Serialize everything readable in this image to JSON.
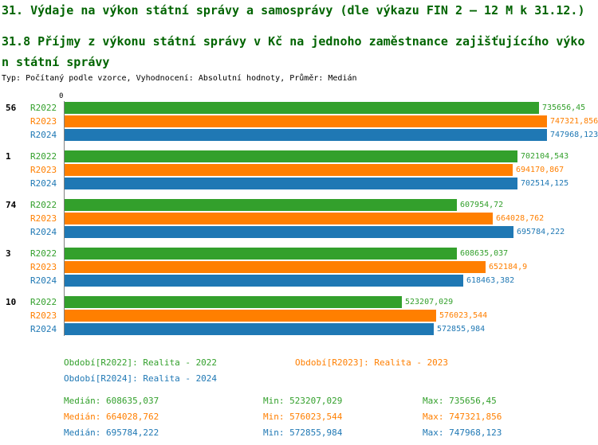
{
  "titles": {
    "line1": "31. Výdaje na výkon státní správy a samosprávy (dle výkazu FIN 2 – 12 M k 31.12.)",
    "line2": "31.8 Příjmy z výkonu státní správy v Kč na jednoho zaměstnance zajišťujícího výkon státní správy",
    "subtitle": "Typ: Počítaný podle vzorce, Vyhodnocení: Absolutní hodnoty, Průměr: Medián"
  },
  "colors": {
    "title": "#006400",
    "r2022": "#33a02c",
    "r2023": "#ff7f00",
    "r2024": "#1f78b4"
  },
  "axis": {
    "zero_label": "0"
  },
  "chart_data": {
    "type": "bar",
    "orientation": "horizontal",
    "title": "31.8 Příjmy z výkonu státní správy v Kč na jednoho zaměstnance zajišťujícího výkon státní správy",
    "xlabel": "",
    "ylabel": "",
    "unit": "Kč",
    "xlim": [
      0,
      755000
    ],
    "grid": false,
    "categories": [
      "56",
      "1",
      "74",
      "3",
      "10"
    ],
    "series": [
      {
        "name": "R2022",
        "color": "#33a02c",
        "values": [
          735656.45,
          702104.543,
          607954.72,
          608635.037,
          523207.029
        ],
        "value_labels": [
          "735656,45",
          "702104,543",
          "607954,72",
          "608635,037",
          "523207,029"
        ]
      },
      {
        "name": "R2023",
        "color": "#ff7f00",
        "values": [
          747321.856,
          694170.867,
          664028.762,
          652184.9,
          576023.544
        ],
        "value_labels": [
          "747321,856",
          "694170,867",
          "664028,762",
          "652184,9",
          "576023,544"
        ]
      },
      {
        "name": "R2024",
        "color": "#1f78b4",
        "values": [
          747968.123,
          702514.125,
          695784.222,
          618463.382,
          572855.984
        ],
        "value_labels": [
          "747968,123",
          "702514,125",
          "695784,222",
          "618463,382",
          "572855,984"
        ]
      }
    ]
  },
  "legend": [
    {
      "label": "Období[R2022]: Realita - 2022",
      "color": "#33a02c"
    },
    {
      "label": "Období[R2023]: Realita - 2023",
      "color": "#ff7f00"
    },
    {
      "label": "Období[R2024]: Realita - 2024",
      "color": "#1f78b4"
    }
  ],
  "stats": [
    {
      "median": "Medián: 608635,037",
      "min": "Min: 523207,029",
      "max": "Max: 735656,45",
      "color": "#33a02c"
    },
    {
      "median": "Medián: 664028,762",
      "min": "Min: 576023,544",
      "max": "Max: 747321,856",
      "color": "#ff7f00"
    },
    {
      "median": "Medián: 695784,222",
      "min": "Min: 572855,984",
      "max": "Max: 747968,123",
      "color": "#1f78b4"
    }
  ]
}
